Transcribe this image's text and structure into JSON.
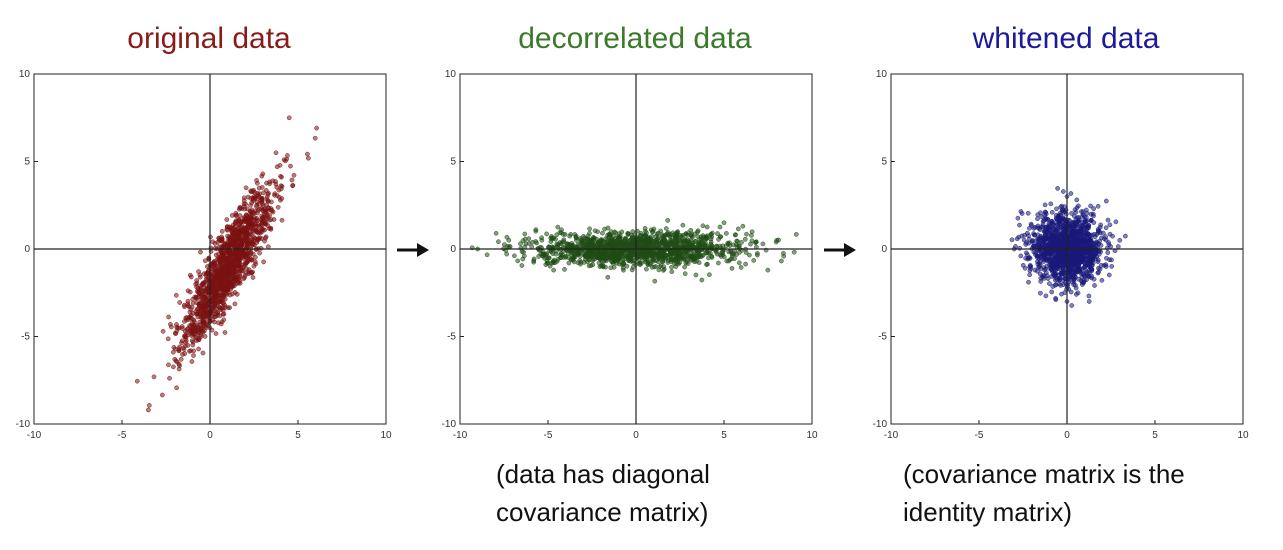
{
  "panels": [
    {
      "title": "original data",
      "title_color": "#8b1a1a",
      "point_color": "#7a1212"
    },
    {
      "title": "decorrelated data",
      "title_color": "#3a7a2a",
      "point_color": "#1f4d14"
    },
    {
      "title": "whitened data",
      "title_color": "#1a1a9a",
      "point_color": "#1a1a7a"
    }
  ],
  "captions": [
    "",
    "(data has diagonal\ncovariance matrix)",
    "(covariance matrix is the\nidentity matrix)"
  ],
  "arrow_icon": "right-arrow-icon",
  "chart_data": [
    {
      "type": "scatter",
      "title": "original data",
      "xlim": [
        -10,
        10
      ],
      "ylim": [
        -10,
        10
      ],
      "xticks": [
        "-10",
        "-5",
        "0",
        "5",
        "10"
      ],
      "yticks": [
        "10",
        "5",
        "0",
        "-5",
        "-10"
      ],
      "distribution": {
        "mean": [
          1.0,
          -1.0
        ],
        "std_major": 2.6,
        "std_minor": 0.55,
        "angle_deg": 62,
        "n": 1400
      },
      "sample_points": [
        [
          -3.5,
          -9.2
        ],
        [
          4.5,
          7.5
        ],
        [
          1.0,
          -1.0
        ],
        [
          2.5,
          3.0
        ],
        [
          -0.5,
          -5.0
        ]
      ]
    },
    {
      "type": "scatter",
      "title": "decorrelated data",
      "xlim": [
        -10,
        10
      ],
      "ylim": [
        -10,
        10
      ],
      "xticks": [
        "-10",
        "-5",
        "0",
        "5",
        "10"
      ],
      "yticks": [
        "10",
        "5",
        "0",
        "-5",
        "-10"
      ],
      "distribution": {
        "mean": [
          0.0,
          0.0
        ],
        "std_major": 3.0,
        "std_minor": 0.5,
        "angle_deg": 0,
        "n": 1400
      },
      "sample_points": [
        [
          -9.0,
          0.0
        ],
        [
          8.0,
          0.5
        ],
        [
          0.0,
          0.0
        ],
        [
          5.0,
          1.5
        ],
        [
          -5.0,
          -0.8
        ]
      ]
    },
    {
      "type": "scatter",
      "title": "whitened data",
      "xlim": [
        -10,
        10
      ],
      "ylim": [
        -10,
        10
      ],
      "xticks": [
        "-10",
        "-5",
        "0",
        "5",
        "10"
      ],
      "yticks": [
        "10",
        "5",
        "0",
        "-5",
        "-10"
      ],
      "distribution": {
        "mean": [
          0.0,
          0.0
        ],
        "std_major": 1.0,
        "std_minor": 1.0,
        "angle_deg": 0,
        "n": 1400
      },
      "sample_points": [
        [
          0.0,
          3.0
        ],
        [
          0.0,
          -3.0
        ],
        [
          -3.0,
          0.0
        ],
        [
          3.0,
          0.5
        ],
        [
          0.0,
          0.0
        ]
      ]
    }
  ]
}
